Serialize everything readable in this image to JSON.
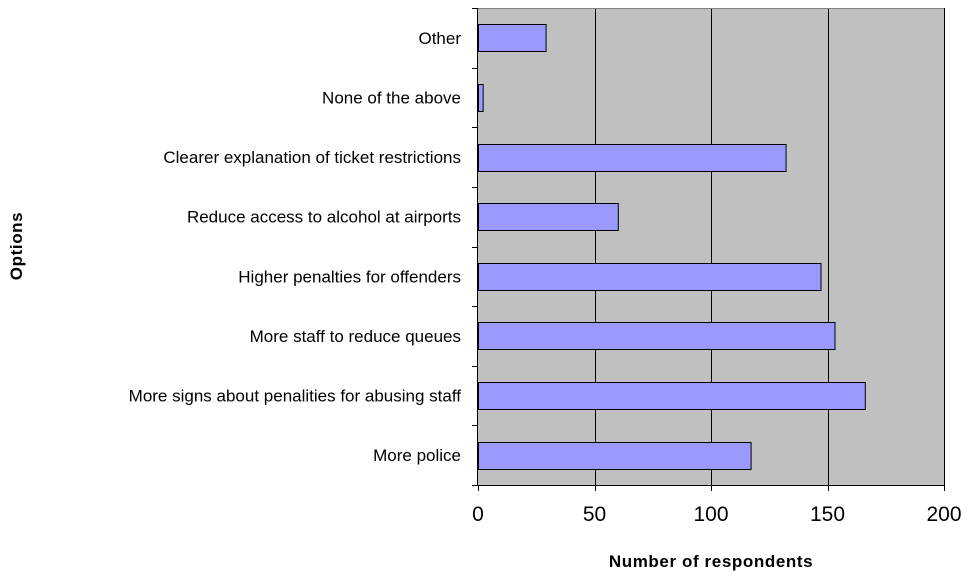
{
  "chart_data": {
    "type": "bar",
    "orientation": "horizontal",
    "categories": [
      "More police",
      "More signs about penalities for abusing staff",
      "More staff to reduce queues",
      "Higher penalties for offenders",
      "Reduce access to alcohol at airports",
      "Clearer explanation of ticket restrictions",
      "None of the above",
      "Other"
    ],
    "values": [
      117,
      166,
      153,
      147,
      60,
      132,
      2,
      29
    ],
    "xlabel": "Number of respondents",
    "ylabel": "Options",
    "xlim": [
      0,
      200
    ],
    "xticks": [
      0,
      50,
      100,
      150,
      200
    ],
    "xtick_labels": [
      "0",
      "50",
      "100",
      "150",
      "200"
    ],
    "grid": "vertical",
    "legend": "none",
    "colors": {
      "bar_fill": "#9999ff",
      "bar_stroke": "#000000",
      "plot_background": "#c0c0c0",
      "gridline": "#000000"
    }
  }
}
